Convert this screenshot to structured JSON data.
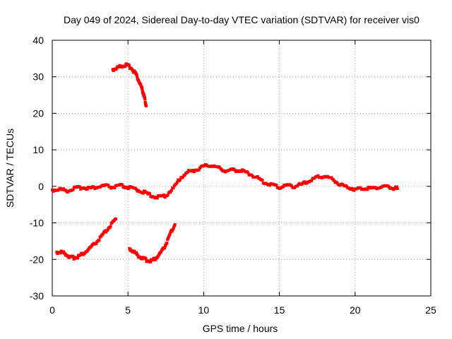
{
  "chart_data": {
    "type": "scatter",
    "title": "Day 049 of 2024, Sidereal Day-to-day VTEC variation (SDTVAR) for receiver vis0",
    "xlabel": "GPS time / hours",
    "ylabel": "SDTVAR / TECUs",
    "xlim": [
      0,
      25
    ],
    "ylim": [
      -30,
      40
    ],
    "xticks": [
      0,
      5,
      10,
      15,
      20,
      25
    ],
    "yticks": [
      -30,
      -20,
      -10,
      0,
      10,
      20,
      30,
      40
    ],
    "grid": true,
    "marker_color": "#ff0000",
    "series": [
      {
        "name": "main-trace",
        "points": [
          [
            0.0,
            -1.0
          ],
          [
            0.5,
            -0.8
          ],
          [
            1.0,
            -1.2
          ],
          [
            1.5,
            -0.5
          ],
          [
            2.0,
            -0.3
          ],
          [
            2.5,
            -0.5
          ],
          [
            3.0,
            -0.2
          ],
          [
            3.5,
            0.2
          ],
          [
            4.0,
            -0.3
          ],
          [
            4.5,
            0.2
          ],
          [
            5.0,
            -0.3
          ],
          [
            5.5,
            -0.8
          ],
          [
            6.0,
            -1.5
          ],
          [
            6.5,
            -2.5
          ],
          [
            7.0,
            -3.0
          ],
          [
            7.5,
            -2.5
          ],
          [
            8.0,
            -0.5
          ],
          [
            8.5,
            2.5
          ],
          [
            9.0,
            4.0
          ],
          [
            9.5,
            4.5
          ],
          [
            10.0,
            5.5
          ],
          [
            10.5,
            5.8
          ],
          [
            11.0,
            5.0
          ],
          [
            11.5,
            4.2
          ],
          [
            12.0,
            4.5
          ],
          [
            12.5,
            4.3
          ],
          [
            13.0,
            3.5
          ],
          [
            13.5,
            2.5
          ],
          [
            14.0,
            1.0
          ],
          [
            14.5,
            0.5
          ],
          [
            15.0,
            -0.3
          ],
          [
            15.5,
            0.3
          ],
          [
            16.0,
            0.0
          ],
          [
            16.5,
            0.6
          ],
          [
            17.0,
            1.5
          ],
          [
            17.5,
            2.5
          ],
          [
            18.0,
            2.8
          ],
          [
            18.5,
            2.0
          ],
          [
            19.0,
            0.5
          ],
          [
            19.5,
            -0.2
          ],
          [
            20.0,
            -0.8
          ],
          [
            20.5,
            -0.5
          ],
          [
            21.0,
            -0.5
          ],
          [
            21.5,
            -0.3
          ],
          [
            22.0,
            0.0
          ],
          [
            22.5,
            -0.5
          ],
          [
            22.8,
            -0.5
          ]
        ]
      },
      {
        "name": "upper-arc",
        "points": [
          [
            4.0,
            32.0
          ],
          [
            4.3,
            32.5
          ],
          [
            4.6,
            33.0
          ],
          [
            4.9,
            33.2
          ],
          [
            5.2,
            32.5
          ],
          [
            5.5,
            31.0
          ],
          [
            5.7,
            29.0
          ],
          [
            5.9,
            27.0
          ],
          [
            6.0,
            25.5
          ],
          [
            6.1,
            24.0
          ],
          [
            6.2,
            22.0
          ]
        ]
      },
      {
        "name": "lower-left-trace",
        "points": [
          [
            0.3,
            -18.0
          ],
          [
            0.6,
            -18.0
          ],
          [
            0.9,
            -18.5
          ],
          [
            1.2,
            -19.5
          ],
          [
            1.5,
            -19.5
          ],
          [
            1.8,
            -19.0
          ],
          [
            2.2,
            -18.0
          ],
          [
            2.6,
            -16.5
          ],
          [
            3.0,
            -15.0
          ],
          [
            3.4,
            -13.0
          ],
          [
            3.8,
            -11.0
          ],
          [
            4.2,
            -9.0
          ]
        ]
      },
      {
        "name": "lower-right-trace",
        "points": [
          [
            5.1,
            -17.0
          ],
          [
            5.4,
            -18.0
          ],
          [
            5.7,
            -19.0
          ],
          [
            6.0,
            -19.8
          ],
          [
            6.3,
            -20.3
          ],
          [
            6.6,
            -20.3
          ],
          [
            6.9,
            -19.5
          ],
          [
            7.2,
            -18.0
          ],
          [
            7.5,
            -16.0
          ],
          [
            7.8,
            -13.0
          ],
          [
            8.1,
            -10.5
          ]
        ]
      }
    ]
  }
}
